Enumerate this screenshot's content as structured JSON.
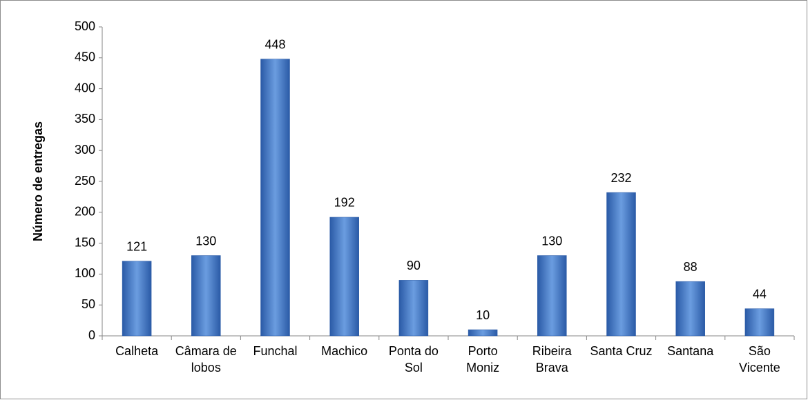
{
  "chart_data": {
    "type": "bar",
    "y_label": "Número de entregas",
    "categories": [
      "Calheta",
      "Câmara de lobos",
      "Funchal",
      "Machico",
      "Ponta do Sol",
      "Porto Moniz",
      "Ribeira Brava",
      "Santa Cruz",
      "Santana",
      "São Vicente"
    ],
    "values": [
      121,
      130,
      448,
      192,
      90,
      10,
      130,
      232,
      88,
      44
    ],
    "color": "#3f78c9",
    "ylim": [
      0,
      500
    ],
    "yticks": [
      0,
      50,
      100,
      150,
      200,
      250,
      300,
      350,
      400,
      450,
      500
    ],
    "grid": false
  }
}
